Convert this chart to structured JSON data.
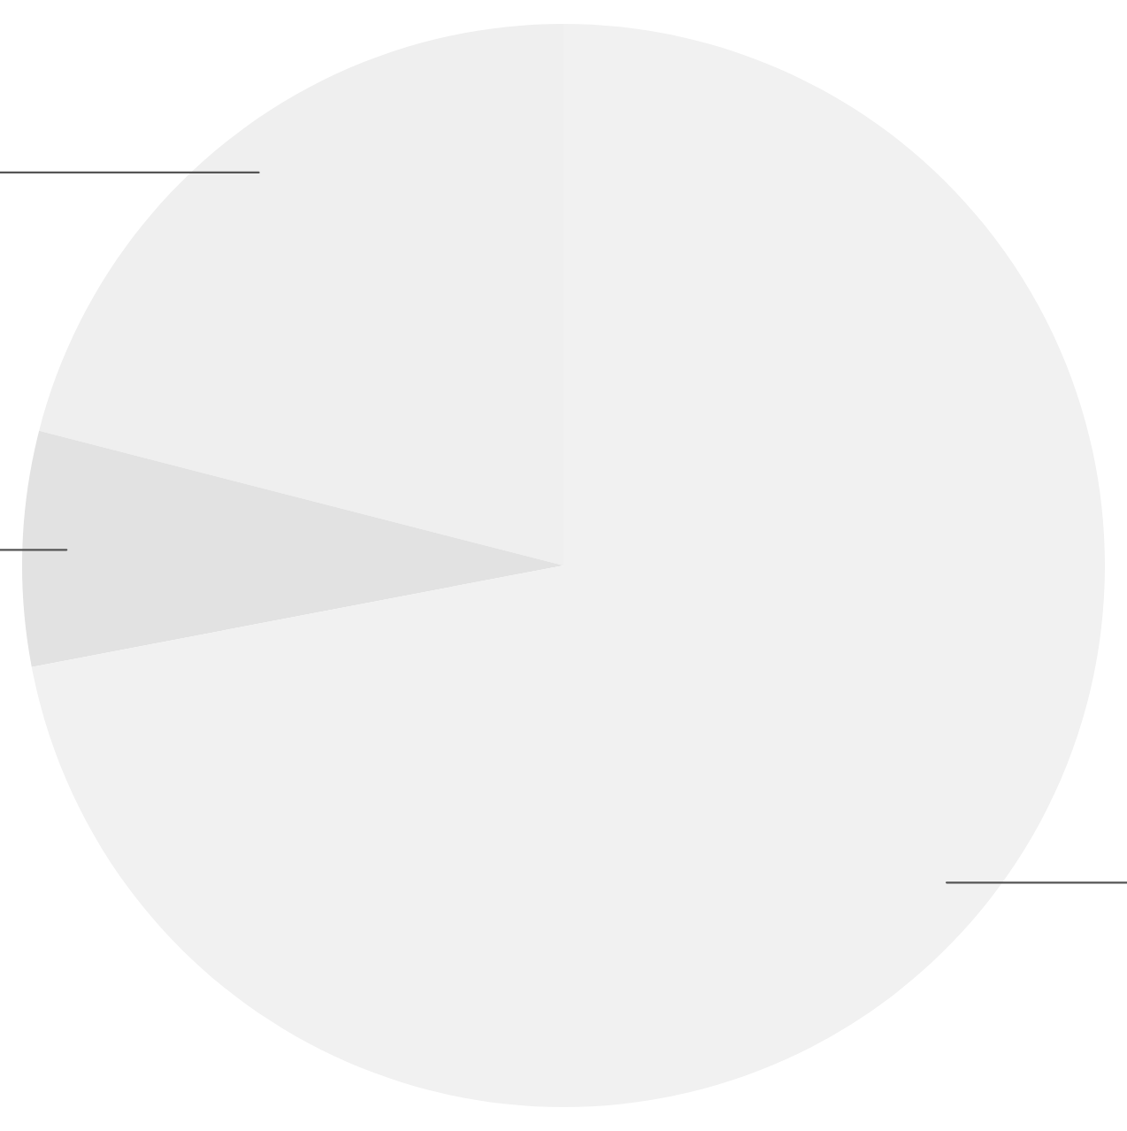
{
  "chart_data": {
    "type": "pie",
    "categories": [
      null,
      null,
      null
    ],
    "values": [
      21,
      7,
      72
    ],
    "colors": [
      "#efefef",
      "#e2e2e2",
      "#f1f1f1"
    ]
  }
}
